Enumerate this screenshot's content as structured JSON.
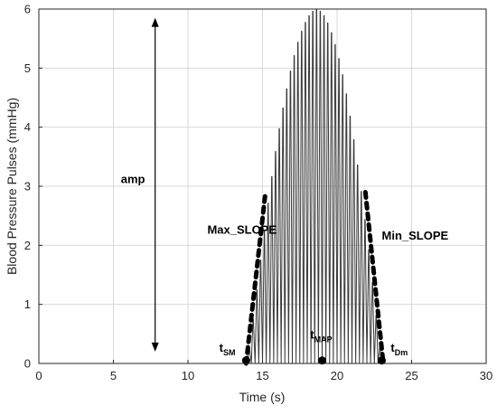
{
  "chart_data": {
    "type": "line",
    "title": "",
    "xlabel": "Time (s)",
    "ylabel": "Blood Pressure Pulses (mmHg)",
    "xlim": [
      0,
      30
    ],
    "ylim": [
      0,
      6
    ],
    "xticks": [
      0,
      5,
      10,
      15,
      20,
      25,
      30
    ],
    "yticks": [
      0,
      1,
      2,
      3,
      4,
      5,
      6
    ],
    "grid": true,
    "legend": "none",
    "series": [
      {
        "style": "oscillatory pulses",
        "pulse_period_s": 0.25,
        "envelope_points": [
          {
            "x": 14.0,
            "y": 0
          },
          {
            "x": 14.5,
            "y": 1.0
          },
          {
            "x": 15.0,
            "y": 2.0
          },
          {
            "x": 15.5,
            "y": 2.95
          },
          {
            "x": 16.0,
            "y": 3.8
          },
          {
            "x": 16.5,
            "y": 4.5
          },
          {
            "x": 17.0,
            "y": 5.1
          },
          {
            "x": 17.5,
            "y": 5.55
          },
          {
            "x": 18.0,
            "y": 5.85
          },
          {
            "x": 18.5,
            "y": 6.0
          },
          {
            "x": 19.0,
            "y": 5.95
          },
          {
            "x": 19.5,
            "y": 5.7
          },
          {
            "x": 20.0,
            "y": 5.3
          },
          {
            "x": 20.5,
            "y": 4.75
          },
          {
            "x": 21.0,
            "y": 4.0
          },
          {
            "x": 21.5,
            "y": 3.15
          },
          {
            "x": 22.0,
            "y": 2.2
          },
          {
            "x": 22.5,
            "y": 1.1
          },
          {
            "x": 23.0,
            "y": 0
          }
        ],
        "color": "#3a3a3a"
      }
    ],
    "slope_lines": [
      {
        "name": "Max_SLOPE",
        "x": [
          13.9,
          15.2
        ],
        "y": [
          0,
          2.9
        ]
      },
      {
        "name": "Min_SLOPE",
        "x": [
          21.9,
          23.1
        ],
        "y": [
          2.9,
          0
        ]
      }
    ],
    "markers": [
      {
        "x": 13.9,
        "y": 0.05
      },
      {
        "x": 19.0,
        "y": 0.05
      },
      {
        "x": 23.0,
        "y": 0.05
      }
    ],
    "annotations": {
      "amp": {
        "text": "amp",
        "x_line": 7.8,
        "y_from": 0.2,
        "y_to": 5.85,
        "text_x": 5.5,
        "text_y": 3.05
      },
      "max_slope": {
        "text": "Max_SLOPE",
        "x": 11.3,
        "y": 2.2
      },
      "min_slope": {
        "text": "Min_SLOPE",
        "x": 23.0,
        "y": 2.1
      },
      "t_sm": {
        "main": "t",
        "sub": "SM",
        "x": 12.1,
        "y": 0.2
      },
      "t_map": {
        "main": "t",
        "sub": "MAP",
        "x": 18.2,
        "y": 0.42
      },
      "t_dm": {
        "main": "t",
        "sub": "Dm",
        "x": 23.6,
        "y": 0.2
      }
    }
  },
  "colors": {
    "axes": "#262626",
    "grid": "#d9d9d9",
    "signal": "#3a3a3a",
    "annotation": "#000000"
  }
}
